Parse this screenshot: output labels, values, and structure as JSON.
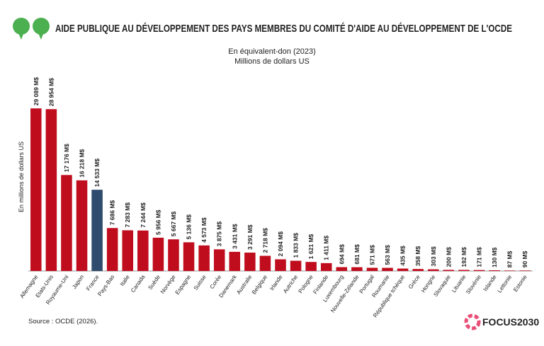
{
  "chart_data": {
    "type": "bar",
    "title": "AIDE PUBLIQUE AU DÉVELOPPEMENT DES PAYS MEMBRES DU COMITÉ D'AIDE AU DÉVELOPPEMENT DE L'OCDE",
    "subtitle": [
      "En équivalent-don (2023)",
      "Millions de dollars US"
    ],
    "y_label": "En millions de dollars US",
    "categories": [
      "Allemagne",
      "Etats-Unis",
      "Royaume-Uni",
      "Japon",
      "France",
      "Pays-Bas",
      "Italie",
      "Canada",
      "Suède",
      "Norvège",
      "Espagne",
      "Suisse",
      "Corée",
      "Danemark",
      "Australie",
      "Belgique",
      "Irlande",
      "Autriche",
      "Pologne",
      "Finlande",
      "Luxembourg",
      "Nouvelle-Zélande",
      "Portugal",
      "Roumanie",
      "République tchèque",
      "Grèce",
      "Hongrie",
      "Slovaquie",
      "Lituanie",
      "Slovénie",
      "Islande",
      "Lettonie",
      "Estonie"
    ],
    "values": [
      29089,
      28954,
      17176,
      16218,
      14533,
      7686,
      7283,
      7244,
      5956,
      5667,
      5136,
      4573,
      3875,
      3431,
      3291,
      2718,
      2094,
      1833,
      1621,
      1411,
      694,
      681,
      571,
      563,
      435,
      358,
      303,
      200,
      192,
      171,
      130,
      87,
      90
    ],
    "value_labels": [
      "29 089 M$",
      "28 954 M$",
      "17 176 M$",
      "16 218 M$",
      "14 533 M$",
      "7 686 M$",
      "7 283 M$",
      "7 244 M$",
      "5 956 M$",
      "5 667 M$",
      "5 136 M$",
      "4 573 M$",
      "3 875 M$",
      "3 431 M$",
      "3 291 M$",
      "2 718 M$",
      "2 094 M$",
      "1 833 M$",
      "1 621 M$",
      "1 411 M$",
      "694 M$",
      "681 M$",
      "571 M$",
      "563 M$",
      "435 M$",
      "358 M$",
      "303 M$",
      "200 M$",
      "192 M$",
      "171 M$",
      "130 M$",
      "87 M$",
      "90 M$"
    ],
    "colors": [
      "#c00d1e",
      "#c00d1e",
      "#c00d1e",
      "#c00d1e",
      "#2f4b6e",
      "#c00d1e",
      "#c00d1e",
      "#c00d1e",
      "#c00d1e",
      "#c00d1e",
      "#c00d1e",
      "#c00d1e",
      "#c00d1e",
      "#c00d1e",
      "#c00d1e",
      "#c00d1e",
      "#c00d1e",
      "#c00d1e",
      "#c00d1e",
      "#c00d1e",
      "#c00d1e",
      "#c00d1e",
      "#c00d1e",
      "#c00d1e",
      "#c00d1e",
      "#c00d1e",
      "#c00d1e",
      "#c00d1e",
      "#c00d1e",
      "#c00d1e",
      "#c00d1e",
      "#c00d1e",
      "#c00d1e"
    ],
    "ylim": [
      0,
      30000
    ],
    "source": "Source : OCDE (2026).",
    "logo": "FOCUS2030"
  }
}
